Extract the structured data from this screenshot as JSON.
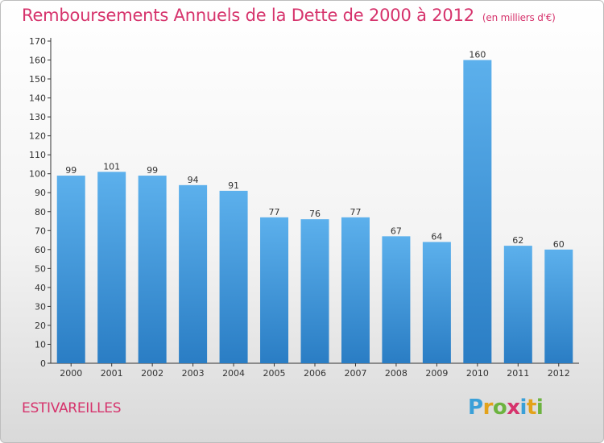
{
  "chart_data": {
    "type": "bar",
    "title": "Remboursements Annuels de la Dette de 2000 à 2012",
    "subtitle": "(en milliers d'€)",
    "categories": [
      "2000",
      "2001",
      "2002",
      "2003",
      "2004",
      "2005",
      "2006",
      "2007",
      "2008",
      "2009",
      "2010",
      "2011",
      "2012"
    ],
    "values": [
      99,
      101,
      99,
      94,
      91,
      77,
      76,
      77,
      67,
      64,
      160,
      62,
      60
    ],
    "ylim": [
      0,
      170
    ],
    "yticks": [
      0,
      10,
      20,
      30,
      40,
      50,
      60,
      70,
      80,
      90,
      100,
      110,
      120,
      130,
      140,
      150,
      160,
      170
    ],
    "xlabel": "",
    "ylabel": "",
    "grid": false,
    "bar_color": "#4a9fe0"
  },
  "footer": {
    "commune": "ESTIVAREILLES",
    "logo_text": "Proxiti"
  },
  "colors": {
    "title": "#d6336c",
    "bar_top": "#5cb0ec",
    "bar_bottom": "#2a7dc4"
  }
}
